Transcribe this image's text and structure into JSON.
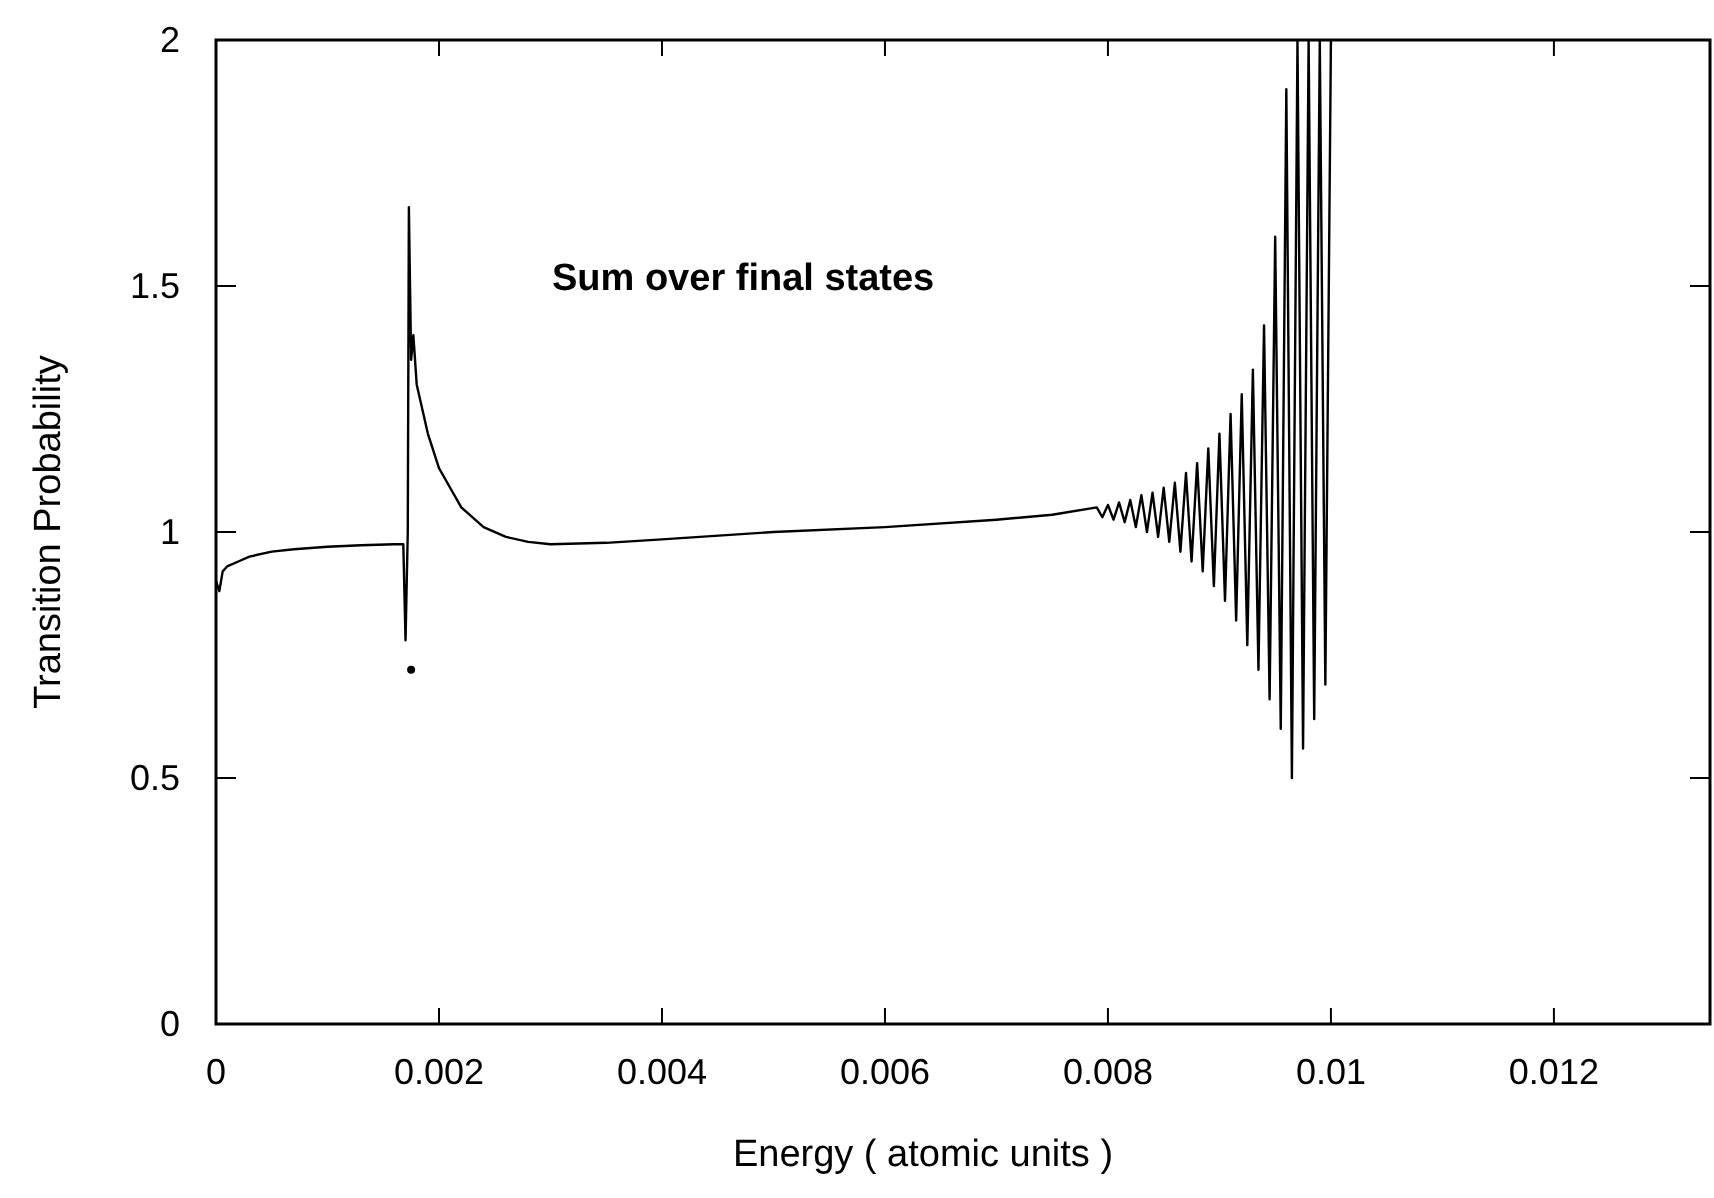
{
  "chart_data": {
    "type": "line",
    "xlabel": "Energy  ( atomic units )",
    "ylabel": "Transition Probability",
    "annotations": [
      "Sum over final states"
    ],
    "xlim": [
      0,
      0.0134
    ],
    "ylim": [
      0,
      2
    ],
    "xticks": [
      0,
      0.002,
      0.004,
      0.006,
      0.008,
      0.01,
      0.012
    ],
    "yticks": [
      0,
      0.5,
      1,
      1.5,
      2
    ],
    "grid": false,
    "marker": "none",
    "line_style": "solid",
    "series": [
      {
        "color": "#000000",
        "x": [
          0,
          3e-05,
          6e-05,
          0.0001,
          0.0002,
          0.0003,
          0.0005,
          0.0007,
          0.001,
          0.0013,
          0.0016,
          0.00168,
          0.0017,
          0.00172,
          0.00173,
          0.00175,
          0.00177,
          0.0018,
          0.0019,
          0.002,
          0.0021,
          0.0022,
          0.0024,
          0.0026,
          0.0028,
          0.003,
          0.0035,
          0.004,
          0.005,
          0.006,
          0.007,
          0.0075,
          0.0079,
          0.00795,
          0.008,
          0.00805,
          0.0081,
          0.00815,
          0.0082,
          0.00825,
          0.0083,
          0.00835,
          0.0084,
          0.00845,
          0.0085,
          0.00855,
          0.0086,
          0.00865,
          0.0087,
          0.00875,
          0.0088,
          0.00885,
          0.0089,
          0.00895,
          0.009,
          0.00905,
          0.0091,
          0.00915,
          0.0092,
          0.00925,
          0.0093,
          0.00935,
          0.0094,
          0.00945,
          0.0095,
          0.00955,
          0.0096,
          0.00965,
          0.0097,
          0.00975,
          0.0098,
          0.00985,
          0.0099,
          0.00995,
          0.01
        ],
        "values": [
          0.9,
          0.88,
          0.92,
          0.93,
          0.94,
          0.95,
          0.96,
          0.965,
          0.97,
          0.973,
          0.975,
          0.975,
          0.78,
          1.0,
          1.66,
          1.35,
          1.4,
          1.3,
          1.2,
          1.13,
          1.09,
          1.05,
          1.01,
          0.99,
          0.98,
          0.975,
          0.978,
          0.985,
          1.0,
          1.01,
          1.025,
          1.035,
          1.05,
          1.03,
          1.055,
          1.025,
          1.06,
          1.02,
          1.065,
          1.01,
          1.075,
          1.0,
          1.08,
          0.99,
          1.09,
          0.98,
          1.1,
          0.96,
          1.12,
          0.94,
          1.14,
          0.92,
          1.17,
          0.89,
          1.2,
          0.86,
          1.24,
          0.82,
          1.28,
          0.77,
          1.33,
          0.72,
          1.42,
          0.66,
          1.6,
          0.6,
          1.9,
          0.5,
          2,
          0.56,
          2,
          0.62,
          2,
          0.69,
          2
        ]
      },
      {
        "type": "scatter",
        "color": "#000000",
        "marker": "circle",
        "x": [
          0.00175
        ],
        "values": [
          0.72
        ]
      }
    ]
  }
}
